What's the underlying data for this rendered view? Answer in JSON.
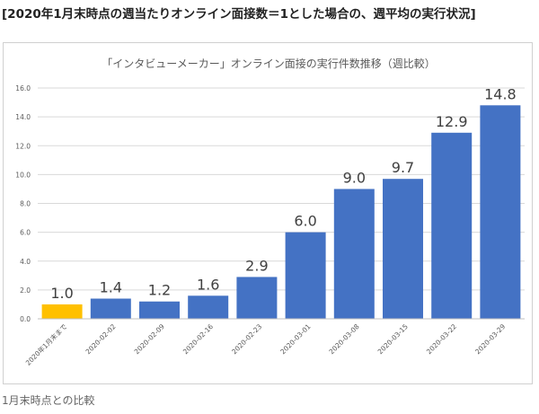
{
  "heading": "[2020年1月末時点の週当たりオンライン面接数＝1とした場合の、週平均の実行状況]",
  "footnote": "1月末時点との比較",
  "chart_data": {
    "type": "bar",
    "title": "「インタビューメーカー」オンライン面接の実行件数推移（週比較）",
    "categories": [
      "2020年1月末まで",
      "2020-02-02",
      "2020-02-09",
      "2020-02-16",
      "2020-02-23",
      "2020-03-01",
      "2020-03-08",
      "2020-03-15",
      "2020-03-22",
      "2020-03-29"
    ],
    "values": [
      1.0,
      1.4,
      1.2,
      1.6,
      2.9,
      6.0,
      9.0,
      9.7,
      12.9,
      14.8
    ],
    "data_labels": [
      "1.0",
      "1.4",
      "1.2",
      "1.6",
      "2.9",
      "6.0",
      "9.0",
      "9.7",
      "12.9",
      "14.8"
    ],
    "ylim": [
      0,
      16
    ],
    "y_ticks": [
      "0.0",
      "2.0",
      "4.0",
      "6.0",
      "8.0",
      "10.0",
      "12.0",
      "14.0",
      "16.0"
    ],
    "grid": true,
    "legend": "none",
    "colors": {
      "baseline": "#FFC000",
      "bars": "#4472C4",
      "grid": "#d9d9d9"
    }
  }
}
